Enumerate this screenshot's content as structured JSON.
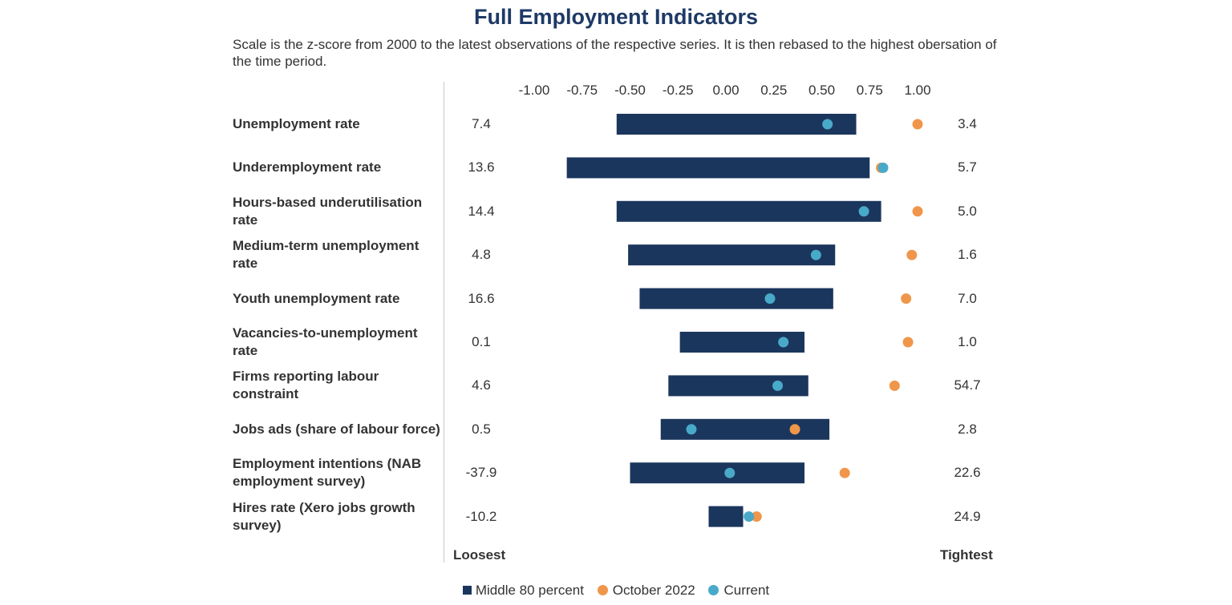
{
  "colors": {
    "bar": "#1b365d",
    "october": "#f0964a",
    "current": "#48aac8"
  },
  "chart_data": {
    "type": "range-dot",
    "title": "Full Employment Indicators",
    "subtitle": "Scale is the z-score from 2000 to the latest observations of the respective series. It is then rebased to the highest obersation of the time period.",
    "xlim": [
      -1.0,
      1.0
    ],
    "ticks": [
      "-1.00",
      "-0.75",
      "-0.50",
      "-0.25",
      "0.00",
      "0.25",
      "0.50",
      "0.75",
      "1.00"
    ],
    "tick_values": [
      -1.0,
      -0.75,
      -0.5,
      -0.25,
      0.0,
      0.25,
      0.5,
      0.75,
      1.0
    ],
    "left_label": "Loosest",
    "right_label": "Tightest",
    "legend": {
      "bar": "Middle 80 percent",
      "october": "October 2022",
      "current": "Current"
    },
    "rows": [
      {
        "label": "Unemployment rate",
        "loosest": "7.4",
        "tightest": "3.4",
        "lo": -0.57,
        "hi": 0.68,
        "october": 1.0,
        "current": 0.53
      },
      {
        "label": "Underemployment rate",
        "loosest": "13.6",
        "tightest": "5.7",
        "lo": -0.83,
        "hi": 0.75,
        "october": 0.81,
        "current": 0.82
      },
      {
        "label": "Hours-based underutilisation rate",
        "loosest": "14.4",
        "tightest": "5.0",
        "lo": -0.57,
        "hi": 0.81,
        "october": 1.0,
        "current": 0.72
      },
      {
        "label": "Medium-term unemployment rate",
        "loosest": "4.8",
        "tightest": "1.6",
        "lo": -0.51,
        "hi": 0.57,
        "october": 0.97,
        "current": 0.47
      },
      {
        "label": "Youth unemployment rate",
        "loosest": "16.6",
        "tightest": "7.0",
        "lo": -0.45,
        "hi": 0.56,
        "october": 0.94,
        "current": 0.23
      },
      {
        "label": "Vacancies-to-unemployment rate",
        "loosest": "0.1",
        "tightest": "1.0",
        "lo": -0.24,
        "hi": 0.41,
        "october": 0.95,
        "current": 0.3
      },
      {
        "label": "Firms reporting labour constraint",
        "loosest": "4.6",
        "tightest": "54.7",
        "lo": -0.3,
        "hi": 0.43,
        "october": 0.88,
        "current": 0.27
      },
      {
        "label": "Jobs ads (share of labour force)",
        "loosest": "0.5",
        "tightest": "2.8",
        "lo": -0.34,
        "hi": 0.54,
        "october": 0.36,
        "current": -0.18
      },
      {
        "label": "Employment intentions (NAB employment survey)",
        "loosest": "-37.9",
        "tightest": "22.6",
        "lo": -0.5,
        "hi": 0.41,
        "october": 0.62,
        "current": 0.02
      },
      {
        "label": "Hires rate (Xero jobs growth survey)",
        "loosest": "-10.2",
        "tightest": "24.9",
        "lo": -0.09,
        "hi": 0.09,
        "october": 0.16,
        "current": 0.12
      }
    ]
  }
}
